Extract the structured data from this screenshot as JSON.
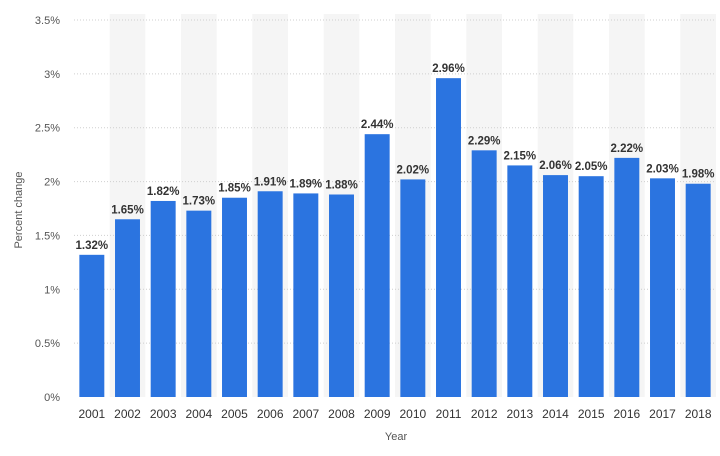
{
  "chart_data": {
    "type": "bar",
    "title": "",
    "xlabel": "Year",
    "ylabel": "Percent change",
    "ylim": [
      0,
      3.5
    ],
    "yticks": [
      0,
      0.5,
      1,
      1.5,
      2,
      2.5,
      3,
      3.5
    ],
    "ytick_labels": [
      "0%",
      "0.5%",
      "1%",
      "1.5%",
      "2%",
      "2.5%",
      "3%",
      "3.5%"
    ],
    "grid": true,
    "bar_color": "#2b74e0",
    "categories": [
      "2001",
      "2002",
      "2003",
      "2004",
      "2005",
      "2006",
      "2007",
      "2008",
      "2009",
      "2010",
      "2011",
      "2012",
      "2013",
      "2014",
      "2015",
      "2016",
      "2017",
      "2018"
    ],
    "values": [
      1.32,
      1.65,
      1.82,
      1.73,
      1.85,
      1.91,
      1.89,
      1.88,
      2.44,
      2.02,
      2.96,
      2.29,
      2.15,
      2.06,
      2.05,
      2.22,
      2.03,
      1.98
    ],
    "data_labels": [
      "1.32%",
      "1.65%",
      "1.82%",
      "1.73%",
      "1.85%",
      "1.91%",
      "1.89%",
      "1.88%",
      "2.44%",
      "2.02%",
      "2.96%",
      "2.29%",
      "2.15%",
      "2.06%",
      "2.05%",
      "2.22%",
      "2.03%",
      "1.98%"
    ]
  }
}
